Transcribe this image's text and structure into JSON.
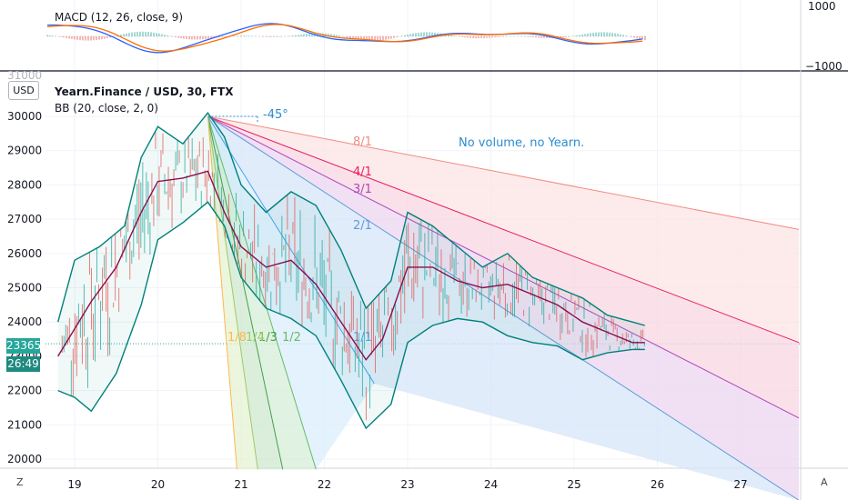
{
  "macd_title": "MACD (12, 26, close, 9)",
  "macd_axis": [
    "1000",
    "−1000"
  ],
  "main_title": "Yearn.Finance / USD, 30, FTX",
  "bb_title": "BB (20, close, 2, 0)",
  "currency_button": "USD",
  "price_label": "23365",
  "countdown_label": "26:49",
  "price_axis_partial": "31000",
  "corner_left": "Z",
  "corner_right": "A",
  "angle_label": "-45°",
  "note": "No volume, no Yearn.",
  "colors": {
    "grid": "#f0f3fa",
    "ema_red": "#e06666",
    "bb_outer": "#00807a",
    "bb_mid": "#880e4f",
    "price_tag": "#26a69a",
    "macd_blue": "#2962ff",
    "macd_orange": "#ff6d00",
    "annot_blue": "#2b8ccf"
  },
  "chart_data": {
    "type": "line",
    "title": "Yearn.Finance / USD, 30, FTX",
    "indicators": [
      "BB (20, close, 2, 0)",
      "MACD (12, 26, close, 9)"
    ],
    "x_ticks": [
      "19",
      "20",
      "21",
      "22",
      "23",
      "24",
      "25",
      "26",
      "27"
    ],
    "y_ticks": [
      20000,
      21000,
      22000,
      23000,
      24000,
      25000,
      26000,
      27000,
      28000,
      29000,
      30000
    ],
    "ylim": [
      19700,
      31000
    ],
    "current_price": 23365,
    "bb_basis": [
      [
        18.8,
        23000
      ],
      [
        19.0,
        23800
      ],
      [
        19.2,
        24600
      ],
      [
        19.5,
        25600
      ],
      [
        19.8,
        27200
      ],
      [
        20.0,
        28100
      ],
      [
        20.3,
        28200
      ],
      [
        20.6,
        28400
      ],
      [
        20.8,
        27200
      ],
      [
        21.0,
        26200
      ],
      [
        21.3,
        25600
      ],
      [
        21.6,
        25800
      ],
      [
        21.9,
        25100
      ],
      [
        22.2,
        24000
      ],
      [
        22.5,
        22900
      ],
      [
        22.7,
        23500
      ],
      [
        23.0,
        25600
      ],
      [
        23.3,
        25600
      ],
      [
        23.6,
        25200
      ],
      [
        23.9,
        25000
      ],
      [
        24.2,
        25100
      ],
      [
        24.5,
        24800
      ],
      [
        24.8,
        24500
      ],
      [
        25.1,
        24000
      ],
      [
        25.4,
        23700
      ],
      [
        25.7,
        23400
      ],
      [
        25.85,
        23400
      ]
    ],
    "bb_upper": [
      [
        18.8,
        24000
      ],
      [
        19.0,
        25800
      ],
      [
        19.3,
        26200
      ],
      [
        19.6,
        26800
      ],
      [
        19.8,
        28800
      ],
      [
        20.0,
        29700
      ],
      [
        20.3,
        29200
      ],
      [
        20.6,
        30100
      ],
      [
        20.8,
        29400
      ],
      [
        21.0,
        28000
      ],
      [
        21.3,
        27200
      ],
      [
        21.6,
        27800
      ],
      [
        21.9,
        27400
      ],
      [
        22.2,
        26100
      ],
      [
        22.5,
        24400
      ],
      [
        22.8,
        25200
      ],
      [
        23.0,
        27200
      ],
      [
        23.3,
        26800
      ],
      [
        23.6,
        26200
      ],
      [
        23.9,
        25600
      ],
      [
        24.2,
        26000
      ],
      [
        24.5,
        25300
      ],
      [
        24.8,
        25000
      ],
      [
        25.1,
        24700
      ],
      [
        25.4,
        24200
      ],
      [
        25.7,
        24000
      ],
      [
        25.85,
        23900
      ]
    ],
    "bb_lower": [
      [
        18.8,
        22000
      ],
      [
        19.0,
        21800
      ],
      [
        19.2,
        21400
      ],
      [
        19.5,
        22500
      ],
      [
        19.8,
        24500
      ],
      [
        20.0,
        26400
      ],
      [
        20.3,
        26900
      ],
      [
        20.6,
        27500
      ],
      [
        20.8,
        26800
      ],
      [
        21.0,
        25300
      ],
      [
        21.3,
        24400
      ],
      [
        21.6,
        24100
      ],
      [
        21.9,
        23600
      ],
      [
        22.2,
        22300
      ],
      [
        22.5,
        20900
      ],
      [
        22.8,
        21600
      ],
      [
        23.0,
        23400
      ],
      [
        23.3,
        23900
      ],
      [
        23.6,
        24100
      ],
      [
        23.9,
        24000
      ],
      [
        24.2,
        23600
      ],
      [
        24.5,
        23400
      ],
      [
        24.8,
        23300
      ],
      [
        25.1,
        22900
      ],
      [
        25.4,
        23100
      ],
      [
        25.7,
        23200
      ],
      [
        25.85,
        23200
      ]
    ],
    "gann_fan": {
      "origin": [
        20.6,
        30000
      ],
      "lines": [
        {
          "label": "8/1",
          "end": [
            27.7,
            26700
          ]
        },
        {
          "label": "4/1",
          "end": [
            27.7,
            23400
          ]
        },
        {
          "label": "3/1",
          "end": [
            27.7,
            21200
          ]
        },
        {
          "label": "2/1",
          "end": [
            27.7,
            18800
          ]
        },
        {
          "label": "1/1",
          "end": [
            22.6,
            22200
          ]
        },
        {
          "label": "1/2",
          "end": [
            21.9,
            19700
          ]
        },
        {
          "label": "1/3",
          "end": [
            21.5,
            19700
          ]
        },
        {
          "label": "1/4",
          "end": [
            21.2,
            19700
          ]
        },
        {
          "label": "1/8",
          "end": [
            20.95,
            19700
          ]
        }
      ]
    },
    "macd_ylim": [
      -1000,
      1000
    ]
  }
}
